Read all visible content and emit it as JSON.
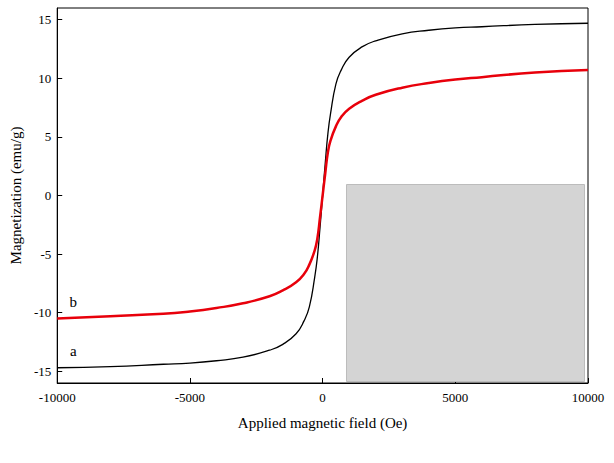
{
  "chart_data": {
    "type": "line",
    "x_label": "Applied magnetic field (Oe)",
    "y_label": "Magnetization (emu/g)",
    "xlim": [
      -10000,
      10000
    ],
    "xticks": [
      -10000,
      -5000,
      0,
      5000,
      10000
    ],
    "ylim": [
      -16,
      16
    ],
    "yticks": [
      -15,
      -10,
      -5,
      0,
      5,
      10,
      15
    ],
    "grid": false,
    "x": [
      -10000,
      -8000,
      -6000,
      -5000,
      -4000,
      -3000,
      -2000,
      -1500,
      -1000,
      -700,
      -500,
      -300,
      -200,
      -100,
      0,
      100,
      200,
      300,
      500,
      700,
      1000,
      1500,
      2000,
      3000,
      4000,
      5000,
      6000,
      8000,
      10000
    ],
    "series": [
      {
        "name": "a",
        "color": "#000000",
        "values": [
          -14.7,
          -14.6,
          -14.4,
          -14.3,
          -14.1,
          -13.8,
          -13.2,
          -12.7,
          -11.8,
          -10.7,
          -9.5,
          -7.0,
          -5.3,
          -2.8,
          0,
          2.8,
          5.3,
          7.0,
          9.5,
          10.7,
          11.8,
          12.7,
          13.2,
          13.8,
          14.1,
          14.3,
          14.4,
          14.6,
          14.7
        ]
      },
      {
        "name": "b",
        "color": "#e8000b",
        "values": [
          -10.5,
          -10.3,
          -10.1,
          -9.9,
          -9.6,
          -9.2,
          -8.6,
          -8.1,
          -7.4,
          -6.7,
          -5.9,
          -4.7,
          -3.7,
          -1.9,
          0,
          1.9,
          3.7,
          4.7,
          5.9,
          6.7,
          7.4,
          8.1,
          8.6,
          9.2,
          9.6,
          9.9,
          10.1,
          10.5,
          10.7
        ]
      }
    ]
  }
}
